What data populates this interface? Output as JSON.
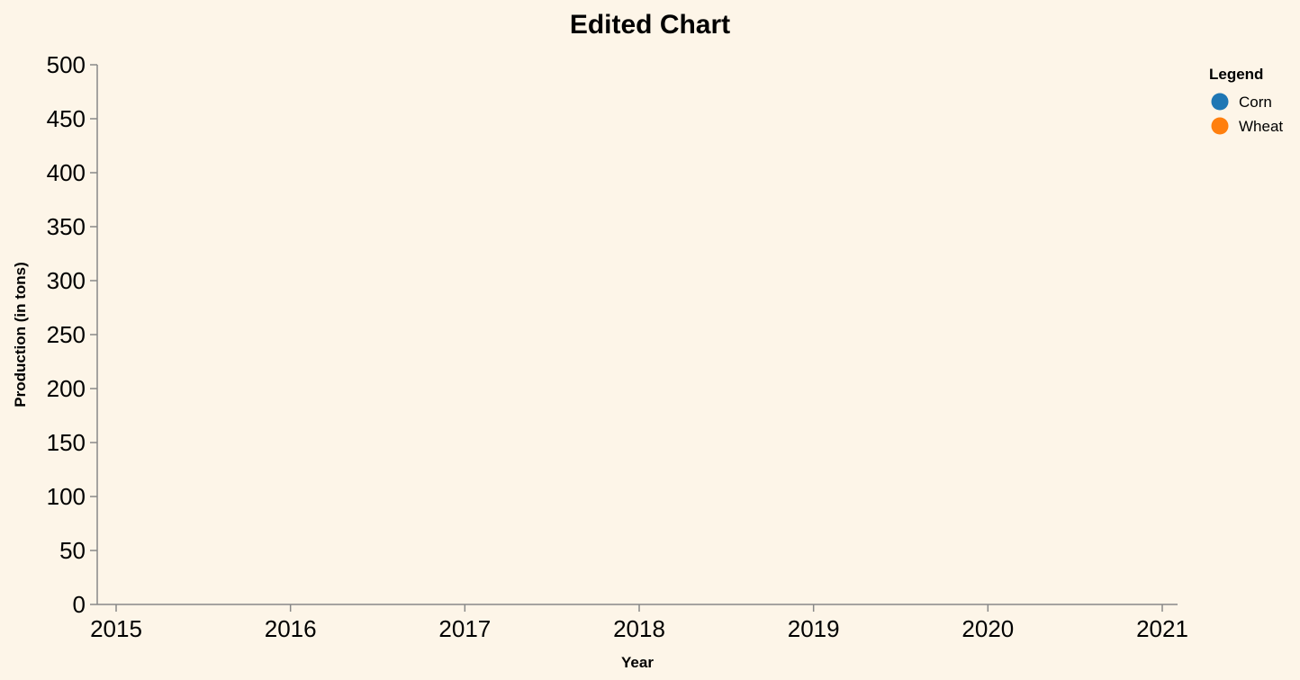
{
  "colors": {
    "background": "#fdf5e8",
    "axis": "#888888",
    "corn": "#1f77b4",
    "wheat": "#ff7f0e"
  },
  "chart_data": {
    "type": "line",
    "title": "Edited Chart",
    "xlabel": "Year",
    "ylabel": "Production (in tons)",
    "x_ticks": [
      "2015",
      "2016",
      "2017",
      "2018",
      "2019",
      "2020",
      "2021"
    ],
    "xlim": [
      2015,
      2021
    ],
    "y_ticks": [
      "0",
      "50",
      "100",
      "150",
      "200",
      "250",
      "300",
      "350",
      "400",
      "450",
      "500"
    ],
    "ylim": [
      0,
      500
    ],
    "grid": false,
    "legend": {
      "title": "Legend",
      "placement": "top-right",
      "items": [
        {
          "label": "Corn",
          "color": "#1f77b4"
        },
        {
          "label": "Wheat",
          "color": "#ff7f0e"
        }
      ]
    },
    "series": [
      {
        "name": "Corn",
        "x": [],
        "y": []
      },
      {
        "name": "Wheat",
        "x": [],
        "y": []
      }
    ]
  }
}
